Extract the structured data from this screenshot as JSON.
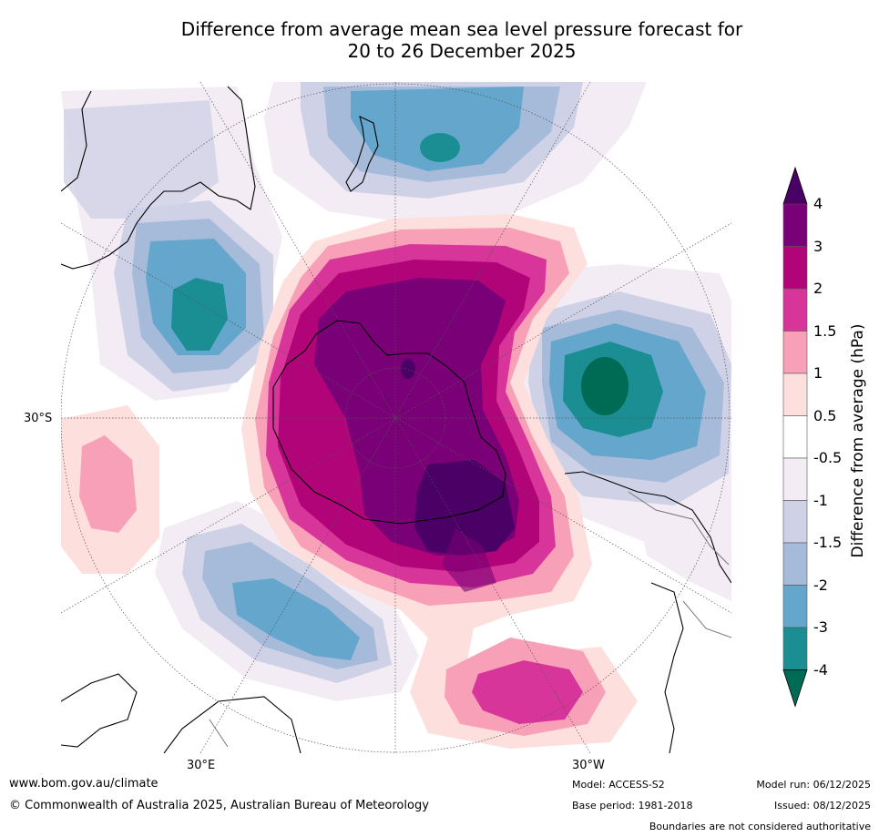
{
  "title": {
    "line1": "Difference from average mean sea level pressure forecast for",
    "line2": "20 to 26 December 2025"
  },
  "axes": {
    "lat_label": "30°S",
    "lon_left": "30°E",
    "lon_right": "30°W"
  },
  "colorbar": {
    "title": "Difference from average (hPa)",
    "levels": [
      "4",
      "3",
      "2",
      "1.5",
      "1",
      "0.5",
      "-0.5",
      "-1",
      "-1.5",
      "-2",
      "-3",
      "-4"
    ],
    "colors": [
      "#4a0064",
      "#7a0077",
      "#b00478",
      "#d8359a",
      "#f7a0b8",
      "#fddfdd",
      "#ffffff",
      "#f3ecf5",
      "#cfd2e6",
      "#a6bad9",
      "#64a6cc",
      "#1a8e92",
      "#006b55"
    ]
  },
  "footer": {
    "website": "www.bom.gov.au/climate",
    "copyright": "© Commonwealth of Australia 2025, Australian Bureau of Meteorology",
    "model": "Model: ACCESS-S2",
    "base_period": "Base period: 1981-2018",
    "model_run": "Model run: 06/12/2025",
    "issued": "Issued: 08/12/2025",
    "disclaimer": "Boundaries are not considered authoritative"
  }
}
